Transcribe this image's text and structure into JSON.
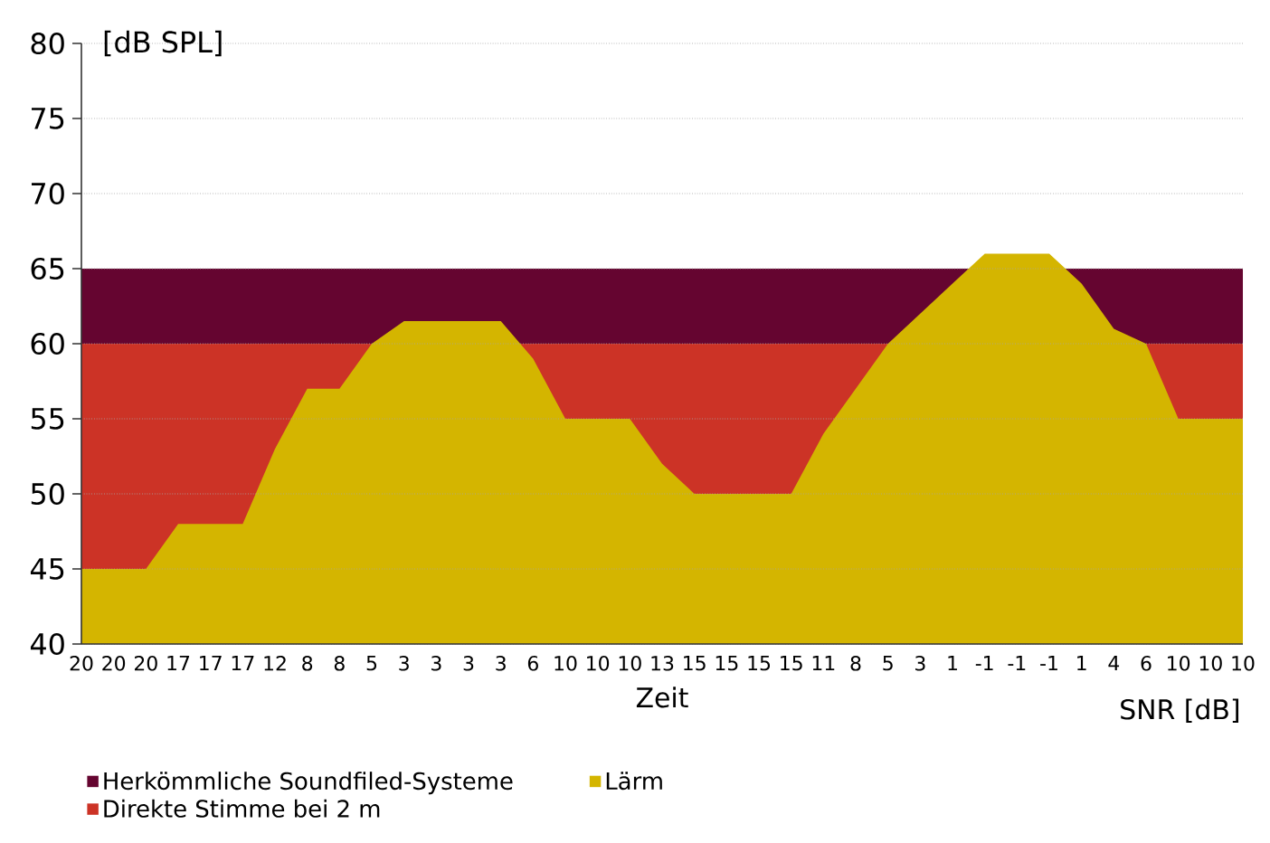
{
  "chart_data": {
    "type": "area",
    "ylabel": "[dB SPL]",
    "xlabel": "Zeit",
    "annotations": [
      "SNR [dB]"
    ],
    "categories": [
      "20",
      "20",
      "20",
      "17",
      "17",
      "17",
      "12",
      "8",
      "8",
      "5",
      "3",
      "3",
      "3",
      "3",
      "6",
      "10",
      "10",
      "10",
      "13",
      "15",
      "15",
      "15",
      "15",
      "11",
      "8",
      "5",
      "3",
      "1",
      "-1",
      "-1",
      "-1",
      "1",
      "4",
      "6",
      "10",
      "10",
      "10"
    ],
    "series": [
      {
        "name": "Lärm",
        "color": "#d4b500",
        "values": [
          45,
          45,
          45,
          48,
          48,
          48,
          53,
          57,
          57,
          60,
          61.5,
          61.5,
          61.5,
          61.5,
          59,
          55,
          55,
          55,
          52,
          50,
          50,
          50,
          50,
          54,
          57,
          60,
          62,
          64,
          66,
          66,
          66,
          64,
          61,
          60,
          55,
          55,
          55
        ]
      }
    ],
    "ylim": [
      40,
      80
    ],
    "yticks": [
      40,
      45,
      50,
      55,
      60,
      65,
      70,
      75,
      80
    ],
    "grid": "y",
    "legend": "bottom",
    "bands": [
      {
        "axis": "y",
        "from": 60,
        "to": 65,
        "label": "Herkömmliche Soundfiled-Systeme",
        "color": "#650530"
      },
      {
        "axis": "y",
        "from": 40,
        "to": 60,
        "label": "Direkte Stimme bei 2 m",
        "color": "#cc3326"
      }
    ]
  }
}
